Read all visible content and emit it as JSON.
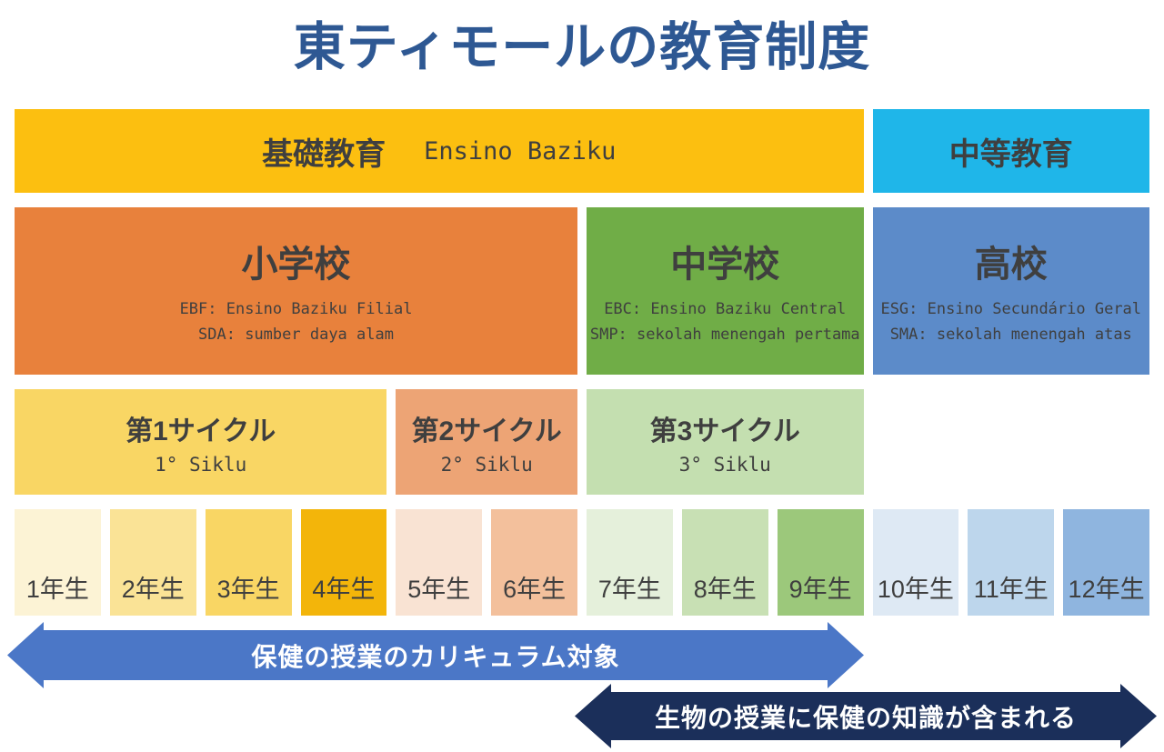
{
  "title": "東ティモールの教育制度",
  "bands": {
    "basic": {
      "label": "基礎教育",
      "sublabel": "Ensino Baziku"
    },
    "secondary": {
      "label": "中等教育"
    }
  },
  "schools": {
    "primary": {
      "name": "小学校",
      "lines": [
        "EBF: Ensino Baziku Filial",
        "SDA: sumber daya alam"
      ]
    },
    "junior": {
      "name": "中学校",
      "lines": [
        "EBC: Ensino Baziku Central",
        "SMP: sekolah menengah pertama"
      ]
    },
    "high": {
      "name": "高校",
      "lines": [
        "ESG: Ensino Secundário Geral",
        "SMA: sekolah menengah atas"
      ]
    }
  },
  "cycles": [
    {
      "label": "第1サイクル",
      "sublabel": "1° Siklu"
    },
    {
      "label": "第2サイクル",
      "sublabel": "2° Siklu"
    },
    {
      "label": "第3サイクル",
      "sublabel": "3° Siklu"
    }
  ],
  "grades": [
    "1年生",
    "2年生",
    "3年生",
    "4年生",
    "5年生",
    "6年生",
    "7年生",
    "8年生",
    "9年生",
    "10年生",
    "11年生",
    "12年生"
  ],
  "arrows": {
    "health": {
      "label": "保健の授業のカリキュラム対象"
    },
    "biology": {
      "label": "生物の授業に保健の知識が含まれる"
    }
  },
  "colors": {
    "title_text": "#2E5893",
    "band_basic": "#FCBF10",
    "band_secondary": "#1FB6E9",
    "school_primary": "#E8813C",
    "school_junior": "#70AD47",
    "school_high": "#5C8BC9",
    "cycle_1": "#F9D664",
    "cycle_2": "#EDA475",
    "cycle_3": "#C4DFB0",
    "grade_colors": [
      "#FCF3D5",
      "#FAE396",
      "#F9D664",
      "#F3B50A",
      "#F9E3D3",
      "#F3C09C",
      "#E5F0DB",
      "#C8E0B4",
      "#9CC87B",
      "#DEE9F4",
      "#BDD6EC",
      "#8FB5DF"
    ],
    "arrow_health": "#4B77C7",
    "arrow_biology": "#1B2F5A",
    "body_text": "#3F3F3F"
  }
}
